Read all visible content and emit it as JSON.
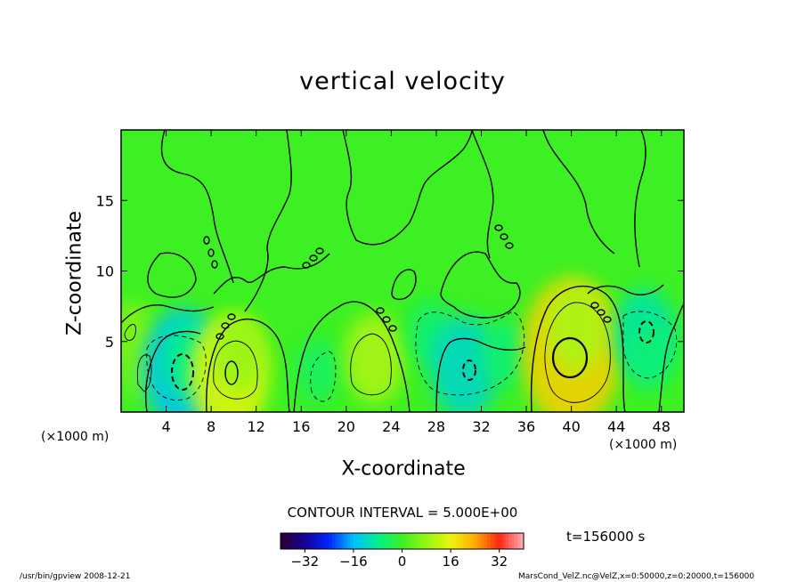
{
  "chart_data": {
    "type": "heatmap",
    "title": "vertical velocity",
    "xlabel": "X-coordinate",
    "ylabel": "Z-coordinate",
    "x_unit_label": "(×1000 m)",
    "xlim": [
      0,
      50
    ],
    "ylim": [
      0,
      20
    ],
    "x_ticks": [
      4,
      8,
      12,
      16,
      20,
      24,
      28,
      32,
      36,
      40,
      44,
      48
    ],
    "y_ticks": [
      5,
      10,
      15
    ],
    "contour_interval_label": "CONTOUR INTERVAL = 5.000E+00",
    "time_label": "t=156000 s",
    "colorbar": {
      "range": [
        -40,
        40
      ],
      "ticks": [
        -32,
        -16,
        0,
        16,
        32
      ]
    },
    "cells": [
      {
        "x": 1,
        "z": 5.5,
        "w": 6
      },
      {
        "x": 1.8,
        "z": 3,
        "w": 5
      },
      {
        "x": 5.5,
        "z": 3,
        "w": -15
      },
      {
        "x": 6,
        "z": 3.8,
        "w": -8
      },
      {
        "x": 9.6,
        "z": 2.6,
        "w": 15
      },
      {
        "x": 10.5,
        "z": 4.2,
        "w": 8
      },
      {
        "x": 17.5,
        "z": 3,
        "w": -5
      },
      {
        "x": 22.5,
        "z": 3.8,
        "w": 10
      },
      {
        "x": 27.5,
        "z": 5.5,
        "w": -6
      },
      {
        "x": 30.5,
        "z": 3.2,
        "w": -12
      },
      {
        "x": 34,
        "z": 4.2,
        "w": -6
      },
      {
        "x": 40,
        "z": 4.2,
        "w": 20
      },
      {
        "x": 40.5,
        "z": 6,
        "w": 10
      },
      {
        "x": 46.5,
        "z": 5.5,
        "w": -10
      },
      {
        "x": 47,
        "z": 4,
        "w": -6
      }
    ]
  },
  "footer": {
    "left": "/usr/bin/gpview 2008-12-21",
    "right": "MarsCond_VelZ.nc@VelZ,x=0:50000,z=0:20000,t=156000"
  },
  "colors": {
    "background_field": "#3df023",
    "contour": "#000000"
  }
}
